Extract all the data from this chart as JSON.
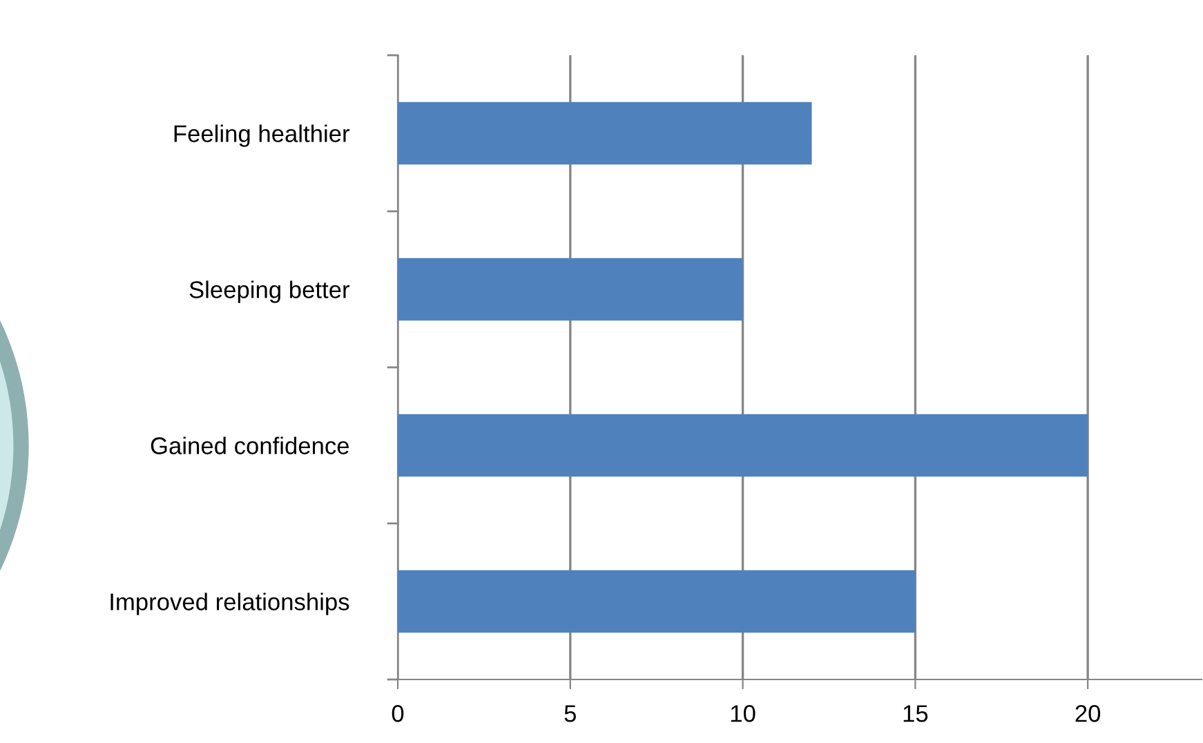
{
  "chart_data": {
    "type": "bar",
    "orientation": "horizontal",
    "categories": [
      "Feeling healthier",
      "Sleeping better",
      "Gained confidence",
      "Improved relationships"
    ],
    "values": [
      12,
      10,
      20,
      15
    ],
    "color": "#4f81bd",
    "xlim": [
      0,
      23.3
    ],
    "xticks": [
      0,
      5,
      10,
      15,
      20
    ],
    "grid": "x",
    "legend": false
  }
}
